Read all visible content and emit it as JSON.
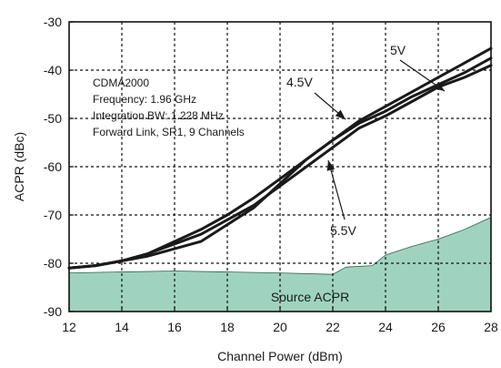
{
  "chart_data": {
    "type": "line",
    "title": "",
    "xlabel": "Channel Power (dBm)",
    "ylabel": "ACPR (dBc)",
    "xlim": [
      12,
      28
    ],
    "ylim": [
      -90,
      -30
    ],
    "x_ticks": [
      12,
      14,
      16,
      18,
      20,
      22,
      24,
      26,
      28
    ],
    "y_ticks": [
      -90,
      -80,
      -70,
      -60,
      -50,
      -40,
      -30
    ],
    "x_tick_labels": [
      "12",
      "14",
      "16",
      "18",
      "20",
      "22",
      "24",
      "26",
      "28"
    ],
    "y_tick_labels": [
      "-90",
      "-80",
      "-70",
      "-60",
      "-50",
      "-40",
      "-30"
    ],
    "grid": true,
    "annotation_lines": [
      "CDMA2000",
      "Frequency: 1.96 GHz",
      "Integration BW: 1.228 MHz",
      "Forward Link, SR1, 9 Channels"
    ],
    "series": [
      {
        "name": "5V",
        "x": [
          12,
          13,
          14,
          15,
          16,
          17,
          18,
          19,
          20,
          21,
          22,
          23,
          24,
          25,
          26,
          27,
          28
        ],
        "y": [
          -81,
          -80.5,
          -79.5,
          -78,
          -76,
          -74,
          -71,
          -68,
          -64,
          -60,
          -56,
          -52,
          -49.5,
          -46.5,
          -43.5,
          -41.5,
          -39
        ]
      },
      {
        "name": "4.5V",
        "x": [
          12,
          13,
          14,
          15,
          16,
          17,
          18,
          19,
          20,
          21,
          22,
          23,
          24,
          25,
          26,
          27,
          28
        ],
        "y": [
          -81,
          -80.5,
          -79.5,
          -78,
          -75.5,
          -73,
          -70,
          -66.5,
          -62.5,
          -58.5,
          -54.5,
          -50.5,
          -47.5,
          -44.5,
          -41.5,
          -38.5,
          -35.5
        ]
      },
      {
        "name": "5.5V",
        "x": [
          12,
          13,
          14,
          15,
          16,
          17,
          18,
          19,
          20,
          21,
          22,
          23,
          24,
          25,
          26,
          27,
          28
        ],
        "y": [
          -81,
          -80.5,
          -79.5,
          -78.5,
          -77,
          -75.5,
          -72,
          -68.5,
          -63.5,
          -58.5,
          -54.5,
          -51,
          -48.5,
          -45.5,
          -43,
          -40.5,
          -37.5
        ]
      }
    ],
    "series_labels": [
      "5V",
      "4.5V",
      "5.5V"
    ],
    "area": {
      "name": "Source ACPR",
      "color": "#9fd3bf",
      "x": [
        12,
        14,
        16,
        18,
        20,
        22,
        22.5,
        23.5,
        24,
        25,
        26,
        27,
        28
      ],
      "y": [
        -82,
        -81.8,
        -81.6,
        -81.8,
        -82,
        -82.3,
        -80.8,
        -80.5,
        -78.3,
        -76.5,
        -75,
        -73,
        -70.5
      ]
    }
  }
}
